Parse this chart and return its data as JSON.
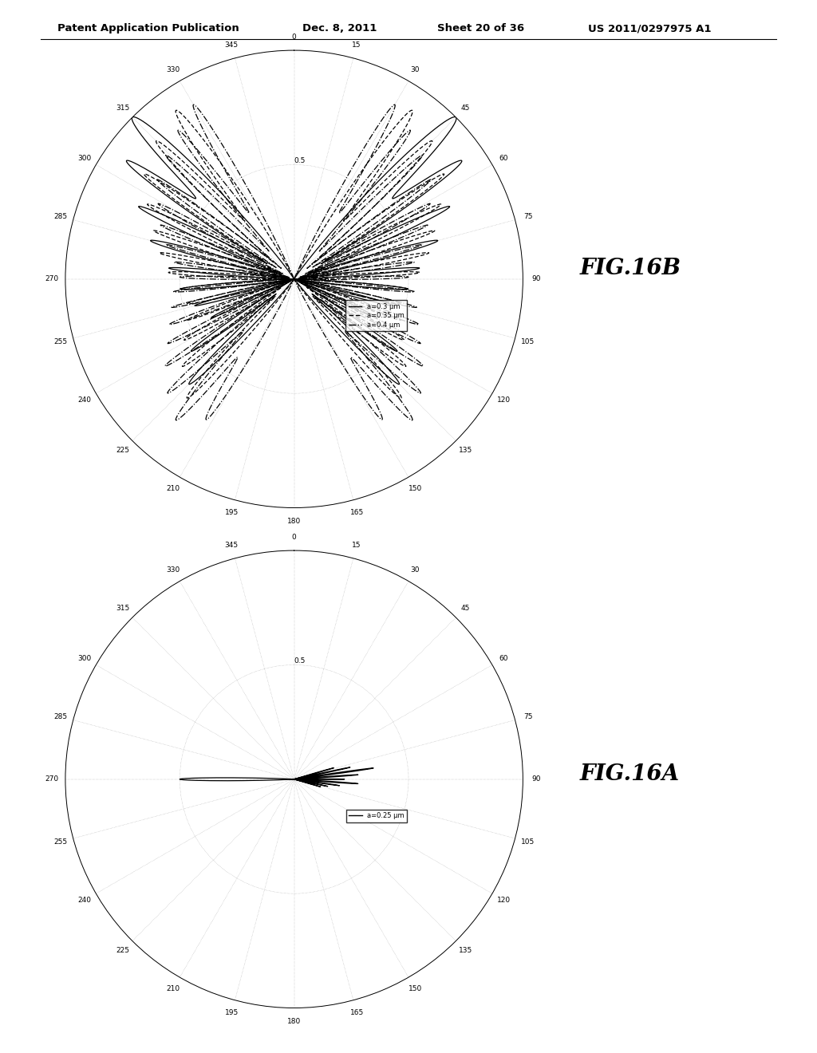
{
  "header_left": "Patent Application Publication",
  "header_mid": "Dec. 8, 2011",
  "header_right_sheet": "Sheet 20 of 36",
  "header_right_patent": "US 2011/0297975 A1",
  "fig_top_label": "FIG.16B",
  "fig_bottom_label": "FIG.16A",
  "background_color": "#ffffff",
  "text_color": "#000000",
  "legend_top": [
    "a=0.3 μm",
    "a=0.35 μm",
    "a=0.4 μm"
  ],
  "legend_bottom": [
    "a=0.25 μm"
  ],
  "angle_labels": [
    "0",
    "15",
    "30",
    "45",
    "60",
    "75",
    "90",
    "105",
    "120",
    "135",
    "150",
    "165",
    "180",
    "195",
    "210",
    "225",
    "240",
    "255",
    "270",
    "285",
    "300",
    "315",
    "330",
    "345"
  ]
}
